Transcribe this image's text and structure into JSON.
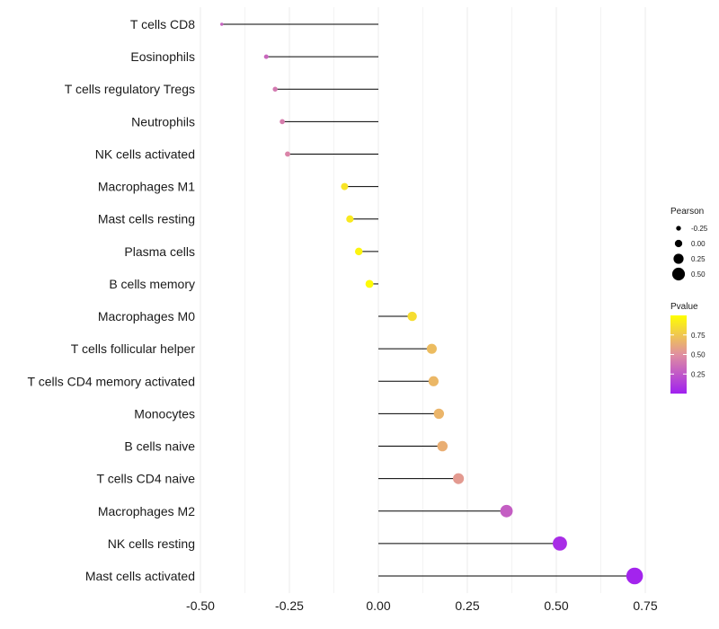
{
  "chart_data": {
    "type": "lollipop",
    "title": "",
    "xlabel": "",
    "ylabel": "",
    "xlim": [
      -0.5,
      0.75
    ],
    "x_ticks": [
      -0.5,
      -0.25,
      0.0,
      0.25,
      0.5,
      0.75
    ],
    "x_tick_labels": [
      "-0.50",
      "-0.25",
      "0.00",
      "0.25",
      "0.50",
      "0.75"
    ],
    "grid": true,
    "categories": [
      "T cells CD8",
      "Eosinophils",
      "T cells regulatory  Tregs",
      "Neutrophils",
      "NK cells activated",
      "Macrophages M1",
      "Mast cells resting",
      "Plasma cells",
      "B cells memory",
      "Macrophages M0",
      "T cells follicular helper",
      "T cells CD4 memory activated",
      "Monocytes",
      "B cells naive",
      "T cells CD4 naive",
      "Macrophages M2",
      "NK cells resting",
      "Mast cells activated"
    ],
    "pearson": [
      -0.44,
      -0.315,
      -0.29,
      -0.27,
      -0.255,
      -0.095,
      -0.08,
      -0.055,
      -0.025,
      0.095,
      0.15,
      0.155,
      0.17,
      0.18,
      0.225,
      0.36,
      0.51,
      0.72
    ],
    "pvalue": [
      0.3,
      0.32,
      0.4,
      0.42,
      0.45,
      0.88,
      0.9,
      0.95,
      0.98,
      0.85,
      0.7,
      0.68,
      0.67,
      0.64,
      0.55,
      0.28,
      0.06,
      0.02
    ],
    "legend_size": {
      "title": "Pearson",
      "labels": [
        "-0.25",
        "0.00",
        "0.25",
        "0.50"
      ],
      "values": [
        -0.25,
        0.0,
        0.25,
        0.5
      ]
    },
    "legend_color": {
      "title": "Pvalue",
      "labels": [
        "0.75",
        "0.50",
        "0.25"
      ],
      "values": [
        0.75,
        0.5,
        0.25
      ],
      "range": [
        0.0,
        1.0
      ],
      "low_color": "#a020f0",
      "mid_color": "#e08fa0",
      "high_color": "#ffff00"
    },
    "stem_color": "#000000",
    "grid_color": "#ebebeb"
  }
}
